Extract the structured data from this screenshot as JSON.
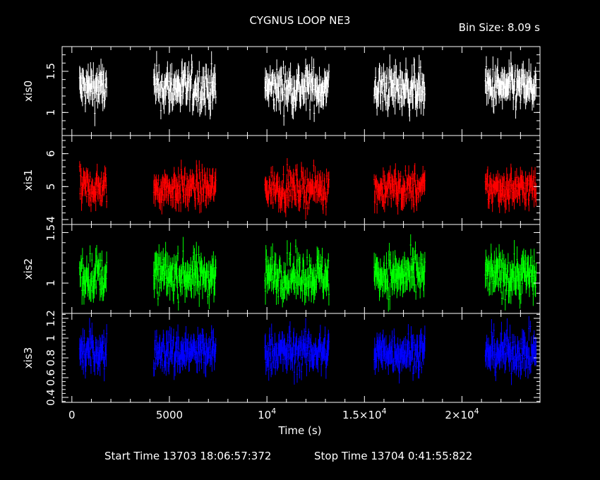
{
  "header": {
    "title": "CYGNUS LOOP NE3",
    "bin_size": "Bin Size: 8.09 s"
  },
  "footer": {
    "start_time": "Start Time 13703 18:06:57:372",
    "stop_time": "Stop Time 13704  0:41:55:822"
  },
  "chart_data": {
    "type": "line",
    "xlabel": "Time (s)",
    "xlim": [
      -500,
      24000
    ],
    "x_ticks": [
      {
        "value": 0,
        "label": "0"
      },
      {
        "value": 5000,
        "label": "5000"
      },
      {
        "value": 10000,
        "label": "10",
        "exp": "4"
      },
      {
        "value": 15000,
        "label": "1.5×10",
        "exp": "4"
      },
      {
        "value": 20000,
        "label": "2×10",
        "exp": "4"
      }
    ],
    "segments": [
      [
        400,
        1800
      ],
      [
        4200,
        7400
      ],
      [
        9900,
        13200
      ],
      [
        15500,
        18100
      ],
      [
        21200,
        23800
      ]
    ],
    "panels": [
      {
        "name": "xis0",
        "color": "#ffffff",
        "ylim": [
          0.72,
          1.8
        ],
        "mean": 1.3,
        "spread": 0.17,
        "yticks": [
          {
            "value": 1,
            "label": "1"
          },
          {
            "value": 1.5,
            "label": "1.5"
          }
        ]
      },
      {
        "name": "xis1",
        "color": "#ff0000",
        "ylim": [
          3.85,
          6.55
        ],
        "mean": 4.95,
        "spread": 0.35,
        "yticks": [
          {
            "value": 4,
            "label": "4"
          },
          {
            "value": 5,
            "label": "5"
          },
          {
            "value": 6,
            "label": "6"
          }
        ]
      },
      {
        "name": "xis2",
        "color": "#00ff00",
        "ylim": [
          0.7,
          1.58
        ],
        "mean": 1.08,
        "spread": 0.14,
        "yticks": [
          {
            "value": 1,
            "label": "1"
          },
          {
            "value": 1.5,
            "label": "1.5"
          }
        ]
      },
      {
        "name": "xis3",
        "color": "#0000ff",
        "ylim": [
          0.35,
          1.25
        ],
        "mean": 0.86,
        "spread": 0.13,
        "yticks": [
          {
            "value": 0.4,
            "label": "0.4"
          },
          {
            "value": 0.6,
            "label": "0.6"
          },
          {
            "value": 0.8,
            "label": "0.8"
          },
          {
            "value": 1,
            "label": "1"
          },
          {
            "value": 1.2,
            "label": "1.2"
          }
        ]
      }
    ]
  }
}
